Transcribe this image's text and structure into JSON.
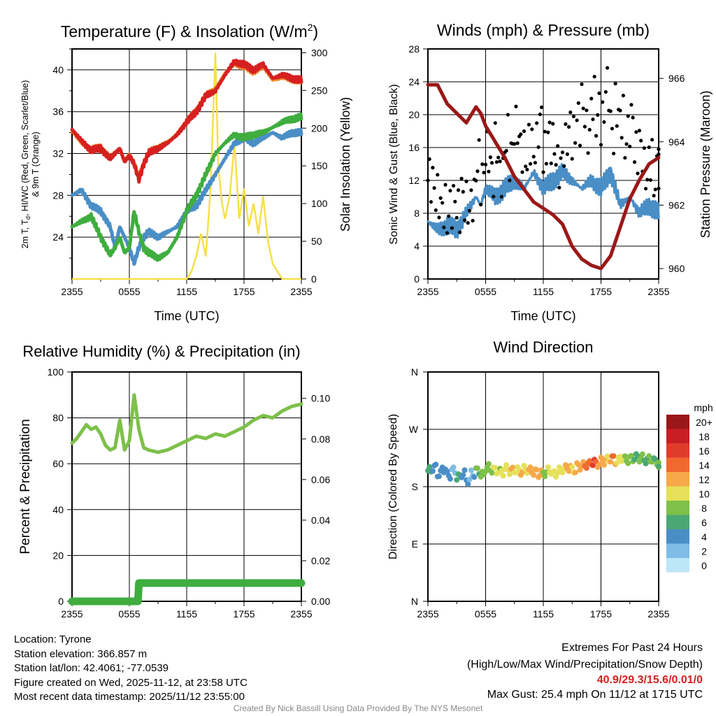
{
  "x_ticks": [
    "2355",
    "0555",
    "1155",
    "1755",
    "2355"
  ],
  "chart_data": [
    {
      "type": "line",
      "title": "Temperature (F) & Insolation (W/m²)",
      "xlabel": "Time (UTC)",
      "ylabel": "2m T, Td, HI/WC (Red, Green, Scarlet/Blue) & 9m T (Orange)",
      "ylabel_line1": "2m T, T",
      "ylabel_sub": "d",
      "ylabel_rest": ", HI/WC (Red, Green, Scarlet/Blue)",
      "ylabel_line2": "& 9m T (Orange)",
      "y2label": "Solar Insolation (Yellow)",
      "ylim": [
        20,
        42
      ],
      "y2lim": [
        0,
        305
      ],
      "yticks": [
        "24",
        "28",
        "32",
        "36",
        "40"
      ],
      "y2ticks": [
        "0",
        "50",
        "100",
        "150",
        "200",
        "250",
        "300"
      ],
      "x_hours": [
        0,
        1,
        2,
        3,
        4,
        4.5,
        5,
        5.5,
        6,
        6.5,
        7,
        7.5,
        8,
        9,
        10,
        11,
        12,
        13,
        14,
        15,
        16,
        17,
        18,
        19,
        20,
        21,
        22,
        23,
        24
      ],
      "series": [
        {
          "name": "2m T",
          "color": "#d62020",
          "values": [
            34.3,
            33.2,
            32.3,
            32.5,
            31.5,
            32,
            32.5,
            31.2,
            31.8,
            31,
            29.5,
            31,
            32,
            32.5,
            33,
            33.8,
            35,
            36,
            37.5,
            38,
            39.5,
            40.8,
            40.5,
            40,
            40.5,
            39.2,
            39.5,
            39.2,
            39
          ]
        },
        {
          "name": "9m T",
          "color": "#f08a30",
          "values": [
            34.1,
            33,
            32.4,
            32.6,
            31.6,
            32.1,
            32.4,
            31.4,
            31.9,
            31.1,
            29.8,
            31.1,
            32.1,
            32.6,
            33.1,
            33.9,
            35.1,
            36.1,
            37.6,
            38.2,
            39.7,
            40.6,
            40.3,
            39.8,
            40.3,
            39,
            39.3,
            39.1,
            38.9
          ]
        },
        {
          "name": "Td",
          "color": "#3fad3f",
          "values": [
            25,
            25.5,
            26,
            24,
            22.3,
            23,
            24,
            22.5,
            23,
            26.5,
            24.5,
            23,
            22.5,
            22,
            22.5,
            24,
            26.5,
            28,
            30,
            32,
            33,
            33.8,
            33.5,
            33.8,
            34,
            34.5,
            35,
            35.3,
            35.5
          ]
        },
        {
          "name": "HI/WC",
          "color": "#4a8ec6",
          "values": [
            28,
            28.5,
            27,
            26.5,
            25,
            23,
            25,
            24,
            23,
            21.5,
            23,
            24,
            24.5,
            24,
            24.5,
            25,
            26.5,
            27,
            28.5,
            30,
            31.5,
            33,
            33.5,
            33,
            33.5,
            34,
            33.5,
            34,
            34
          ]
        }
      ],
      "solar": {
        "name": "Insolation",
        "color": "#f5e04a",
        "x_hours": [
          0,
          12,
          12.5,
          13,
          13.5,
          14,
          14.5,
          15,
          15.3,
          15.7,
          16,
          16.5,
          17,
          17.5,
          18,
          18.5,
          19,
          19.5,
          20,
          20.5,
          21,
          22,
          24
        ],
        "values": [
          0,
          0,
          10,
          30,
          60,
          30,
          120,
          300,
          150,
          100,
          80,
          110,
          180,
          80,
          120,
          70,
          100,
          60,
          110,
          50,
          20,
          0,
          0
        ]
      }
    },
    {
      "type": "line",
      "title": "Winds (mph) & Pressure (mb)",
      "xlabel": "Time (UTC)",
      "ylabel": "Sonic Wind & Gust (Blue, Black)",
      "y2label": "Station Pressure (Maroon)",
      "ylim": [
        0,
        28
      ],
      "y2lim": [
        959.67,
        966.93
      ],
      "yticks": [
        "0",
        "4",
        "8",
        "12",
        "16",
        "20",
        "24",
        "28"
      ],
      "y2ticks": [
        "960",
        "962",
        "964",
        "966"
      ],
      "wind": {
        "color": "#4a8ec6",
        "x_hours": [
          0,
          1,
          2,
          3,
          4,
          5,
          5.5,
          6,
          7,
          8,
          9,
          10,
          11,
          12,
          13,
          14,
          15,
          16,
          17,
          18,
          19,
          20,
          21,
          22,
          23,
          24
        ],
        "values": [
          7,
          6,
          6.5,
          6,
          8,
          10,
          9,
          11,
          10,
          11,
          12,
          11,
          13,
          11,
          12,
          13,
          12,
          11,
          12,
          11,
          13,
          9,
          10,
          8,
          9,
          8
        ]
      },
      "gust": {
        "color": "#000000",
        "step_hours": 0.5,
        "values": [
          12,
          11,
          10,
          9,
          8,
          9,
          8,
          10,
          9,
          10,
          14,
          12,
          15,
          13,
          16,
          13,
          17,
          15,
          18,
          16,
          15,
          17,
          16,
          19,
          15,
          17,
          16,
          14,
          16,
          18,
          17,
          19,
          21,
          18,
          22,
          20,
          19,
          23,
          18,
          21,
          20,
          17,
          19,
          15,
          16,
          13,
          15,
          12,
          14
        ]
      },
      "pressure": {
        "color": "#9a1818",
        "x_hours": [
          0,
          1,
          2,
          3,
          4,
          5,
          5.5,
          6,
          7,
          8,
          9,
          10,
          11,
          12,
          13,
          14,
          15,
          16,
          17,
          18,
          19,
          20,
          21,
          22,
          23,
          24
        ],
        "values": [
          965.8,
          965.8,
          965.2,
          964.9,
          964.6,
          965.1,
          964.9,
          964.5,
          964,
          963.5,
          962.9,
          962.5,
          962.1,
          961.9,
          961.7,
          961.4,
          960.7,
          960.3,
          960.1,
          960.0,
          960.4,
          961.3,
          962.2,
          962.8,
          963.3,
          963.5
        ]
      }
    },
    {
      "type": "line",
      "title": "Relative Humidity (%) & Precipitation (in)",
      "ylabel": "Percent & Precipitation",
      "ylim": [
        0,
        100
      ],
      "y2lim": [
        0,
        0.113
      ],
      "yticks": [
        "0",
        "20",
        "40",
        "60",
        "80",
        "100"
      ],
      "y2ticks": [
        "0.00",
        "0.02",
        "0.04",
        "0.06",
        "0.08",
        "0.10"
      ],
      "rh": {
        "color": "#7ec04a",
        "x_hours": [
          0,
          0.5,
          1,
          1.5,
          2,
          2.5,
          3,
          3.5,
          4,
          4.5,
          5,
          5.5,
          6,
          6.5,
          7,
          7.5,
          8,
          9,
          10,
          11,
          12,
          13,
          14,
          15,
          16,
          17,
          18,
          19,
          20,
          21,
          22,
          23,
          24
        ],
        "values": [
          69,
          71,
          74,
          77,
          75,
          76,
          73,
          68,
          66,
          67,
          79,
          66,
          70,
          90,
          75,
          67,
          66,
          65,
          66,
          68,
          70,
          72,
          71,
          73,
          72,
          74,
          76,
          79,
          81,
          80,
          83,
          85,
          86
        ]
      },
      "precip": {
        "color": "#3fad3f",
        "x_hours": [
          0,
          6.9,
          7.0,
          24
        ],
        "values": [
          0,
          0,
          0.009,
          0.009
        ]
      }
    },
    {
      "type": "scatter",
      "title": "Wind Direction",
      "ylabel": "Direction (Colored By Speed)",
      "yticks": [
        "N",
        "E",
        "S",
        "W",
        "N"
      ],
      "ylim": [
        0,
        360
      ],
      "step_hours": 0.5,
      "direction": [
        205,
        210,
        200,
        208,
        198,
        205,
        195,
        200,
        190,
        200,
        205,
        198,
        210,
        207,
        205,
        203,
        208,
        205,
        206,
        204,
        207,
        205,
        203,
        200,
        202,
        205,
        200,
        205,
        208,
        210,
        206,
        212,
        213,
        215,
        218,
        216,
        220,
        222,
        224,
        220,
        226,
        222,
        224,
        226,
        225,
        222,
        223,
        220,
        212
      ],
      "speed": [
        6,
        5,
        5,
        6,
        5,
        4,
        6,
        5,
        4,
        4,
        8,
        9,
        9,
        10,
        11,
        10,
        11,
        12,
        11,
        12,
        11,
        12,
        13,
        12,
        10,
        11,
        12,
        11,
        12,
        13,
        12,
        13,
        14,
        15,
        16,
        14,
        13,
        12,
        14,
        12,
        11,
        10,
        9,
        8,
        9,
        8,
        9,
        8,
        8
      ],
      "colorbar": {
        "title": "mph",
        "labels": [
          "0",
          "2",
          "4",
          "6",
          "8",
          "10",
          "12",
          "14",
          "16",
          "18",
          "20+"
        ],
        "colors": [
          "#bde6f7",
          "#7fbde6",
          "#4a8ec6",
          "#4aa874",
          "#7ec04a",
          "#e6e05a",
          "#f6a84a",
          "#f06a30",
          "#e03c2c",
          "#c81e24",
          "#9a1818"
        ]
      }
    }
  ],
  "info": {
    "location": "Location: Tyrone",
    "elevation": "Station elevation: 366.857 m",
    "latlon": "Station lat/lon: 42.4061; -77.0539",
    "created": "Figure created on Wed, 2025-11-12, at 23:58 UTC",
    "recent": "Most recent data timestamp: 2025/11/12 23:55:00"
  },
  "extremes": {
    "title": "Extremes For Past 24 Hours",
    "subtitle": "(High/Low/Max Wind/Precipitation/Snow Depth)",
    "values": "40.9/29.3/15.6/0.01/0",
    "values_color": "#d62020",
    "gust": "Max Gust: 25.4 mph On 11/12 at 1715 UTC"
  },
  "credit": "Created By Nick Bassill Using Data Provided By The NYS Mesonet"
}
